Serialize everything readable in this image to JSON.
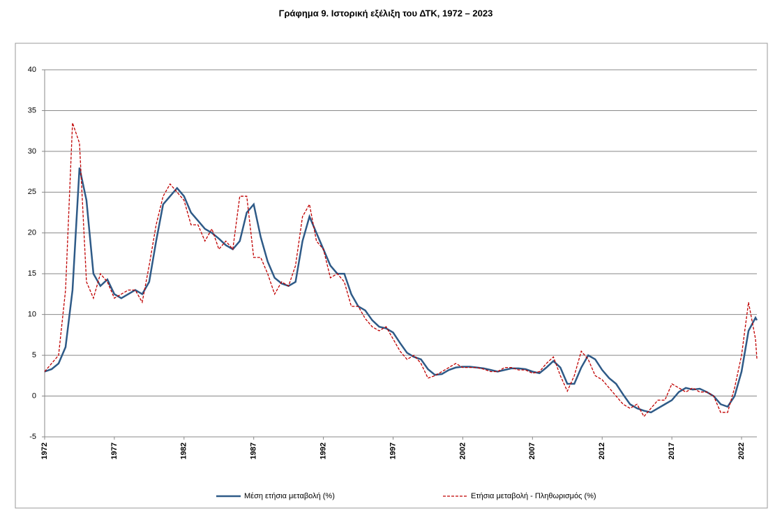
{
  "chart_data": {
    "type": "line",
    "title": "Γράφημα 9. Ιστορική εξέλιξη του ΔΤΚ, 1972 – 2023",
    "x": [
      1972,
      1972.5,
      1973,
      1973.5,
      1974,
      1974.5,
      1975,
      1975.5,
      1976,
      1976.5,
      1977,
      1977.5,
      1978,
      1978.5,
      1979,
      1979.5,
      1980,
      1980.5,
      1981,
      1981.5,
      1982,
      1982.5,
      1983,
      1983.5,
      1984,
      1984.5,
      1985,
      1985.5,
      1986,
      1986.5,
      1987,
      1987.5,
      1988,
      1988.5,
      1989,
      1989.5,
      1990,
      1990.5,
      1991,
      1991.5,
      1992,
      1992.5,
      1993,
      1993.5,
      1994,
      1994.5,
      1995,
      1995.5,
      1996,
      1996.5,
      1997,
      1997.5,
      1998,
      1998.5,
      1999,
      1999.5,
      2000,
      2000.5,
      2001,
      2001.5,
      2002,
      2002.5,
      2003,
      2003.5,
      2004,
      2004.5,
      2005,
      2005.5,
      2006,
      2006.5,
      2007,
      2007.5,
      2008,
      2008.5,
      2009,
      2009.5,
      2010,
      2010.5,
      2011,
      2011.5,
      2012,
      2012.5,
      2013,
      2013.5,
      2014,
      2014.5,
      2015,
      2015.5,
      2016,
      2016.5,
      2017,
      2017.5,
      2018,
      2018.5,
      2019,
      2019.5,
      2020,
      2020.5,
      2021,
      2021.5,
      2022,
      2022.5,
      2023,
      2023.1
    ],
    "series": [
      {
        "name": "Μέση ετήσια μεταβολή (%)",
        "color": "#2e5a87",
        "dashed": false,
        "values": [
          3.0,
          3.3,
          4.0,
          6.0,
          13.0,
          28.0,
          24.0,
          15.0,
          13.5,
          14.3,
          12.5,
          12.0,
          12.5,
          13.0,
          12.5,
          14.0,
          19.0,
          23.5,
          24.5,
          25.5,
          24.5,
          22.5,
          21.5,
          20.5,
          20.0,
          19.3,
          18.5,
          18.0,
          19.0,
          22.5,
          23.5,
          19.5,
          16.5,
          14.5,
          13.8,
          13.5,
          14.0,
          19.0,
          22.0,
          20.0,
          18.0,
          16.0,
          15.0,
          15.0,
          12.5,
          11.0,
          10.5,
          9.3,
          8.5,
          8.3,
          7.8,
          6.5,
          5.3,
          4.8,
          4.5,
          3.3,
          2.6,
          2.7,
          3.2,
          3.5,
          3.6,
          3.6,
          3.5,
          3.4,
          3.2,
          3.0,
          3.2,
          3.4,
          3.4,
          3.3,
          3.0,
          2.8,
          3.5,
          4.3,
          3.5,
          1.5,
          1.5,
          3.5,
          5.0,
          4.5,
          3.2,
          2.2,
          1.5,
          0.2,
          -1.0,
          -1.5,
          -1.8,
          -2.0,
          -1.5,
          -1.0,
          -0.5,
          0.5,
          1.0,
          0.8,
          0.9,
          0.5,
          0,
          -1.0,
          -1.3,
          0,
          3.0,
          8.0,
          9.6,
          9.3
        ]
      },
      {
        "name": "Ετήσια μεταβολή - Πληθωρισμός (%)",
        "color": "#c00000",
        "dashed": true,
        "values": [
          3.0,
          4.0,
          5.0,
          13.0,
          33.5,
          31.0,
          14.0,
          12.0,
          15.0,
          14.0,
          12.0,
          12.5,
          13.0,
          13.0,
          11.5,
          16.0,
          21.0,
          24.5,
          26.0,
          25.0,
          24.0,
          21.0,
          21.0,
          19.0,
          20.5,
          18.0,
          19.0,
          18.0,
          24.5,
          24.5,
          17.0,
          17.0,
          15.0,
          12.5,
          14.0,
          13.5,
          16.0,
          22.0,
          23.5,
          19.0,
          18.0,
          14.5,
          15.0,
          14.0,
          11.0,
          11.0,
          9.5,
          8.5,
          8.0,
          8.5,
          7.0,
          5.5,
          4.5,
          5.0,
          4.0,
          2.2,
          2.5,
          3.0,
          3.5,
          4.0,
          3.5,
          3.5,
          3.5,
          3.3,
          3.0,
          3.0,
          3.5,
          3.5,
          3.2,
          3.2,
          2.8,
          3.0,
          4.0,
          4.8,
          2.5,
          0.6,
          2.5,
          5.5,
          4.5,
          2.5,
          2.0,
          1.0,
          0,
          -1.0,
          -1.5,
          -1.0,
          -2.5,
          -1.5,
          -0.5,
          -0.5,
          1.5,
          1.0,
          0.5,
          1.0,
          0.5,
          0.5,
          0,
          -2.0,
          -2.0,
          1.0,
          5.0,
          11.5,
          7.0,
          4.6
        ]
      }
    ],
    "xlim": [
      1972,
      2023.1
    ],
    "xticks": [
      1972,
      1977,
      1982,
      1987,
      1992,
      1997,
      2002,
      2007,
      2012,
      2017,
      2022
    ],
    "ylim": [
      -5,
      40
    ],
    "yticks": [
      -5,
      0,
      5,
      10,
      15,
      20,
      25,
      30,
      35,
      40
    ],
    "grid": true,
    "legend": "bottom"
  }
}
